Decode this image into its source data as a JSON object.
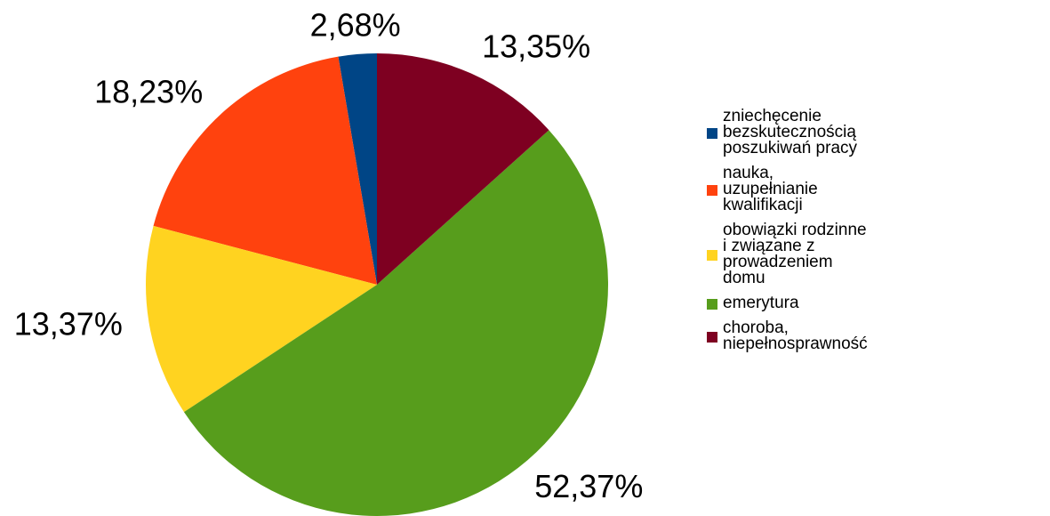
{
  "chart_data": {
    "type": "pie",
    "categories": [
      "zniechęcenie bezskutecznością poszukiwań pracy",
      "nauka, uzupełnianie kwalifikacji",
      "obowiązki rodzinne i związane z prowadzeniem domu",
      "emerytura",
      "choroba, niepełnosprawność"
    ],
    "values": [
      2.68,
      18.23,
      13.37,
      52.37,
      13.35
    ],
    "value_labels": [
      "2,68%",
      "18,23%",
      "13,37%",
      "52,37%",
      "13,35%"
    ],
    "colors": [
      "#004586",
      "#ff420e",
      "#ffd320",
      "#579d1c",
      "#7e0021"
    ],
    "legend": "right"
  }
}
